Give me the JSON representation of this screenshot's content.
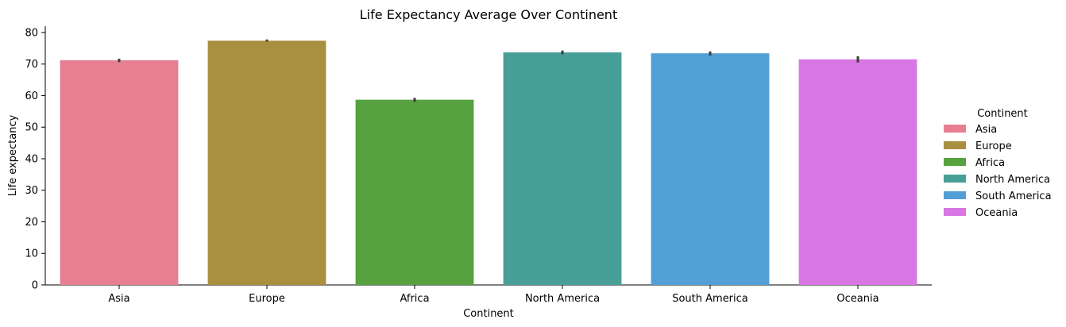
{
  "chart_data": {
    "type": "bar",
    "title": "Life Expectancy Average Over Continent",
    "xlabel": "Continent",
    "ylabel": "Life expectancy",
    "categories": [
      "Asia",
      "Europe",
      "Africa",
      "North America",
      "South America",
      "Oceania"
    ],
    "values": [
      71.2,
      77.4,
      58.7,
      73.7,
      73.4,
      71.5
    ],
    "error_low": [
      70.6,
      77.1,
      58.0,
      73.1,
      72.7,
      70.5
    ],
    "error_high": [
      71.7,
      77.8,
      59.3,
      74.3,
      74.0,
      72.5
    ],
    "colors": [
      "#e77f93",
      "#a98f40",
      "#57a140",
      "#479f98",
      "#529fd6",
      "#d876e3"
    ],
    "ylim": [
      0,
      82
    ],
    "yticks": [
      0,
      10,
      20,
      30,
      40,
      50,
      60,
      70,
      80
    ],
    "legend": {
      "title": "Continent",
      "position": "right",
      "entries": [
        "Asia",
        "Europe",
        "Africa",
        "North America",
        "South America",
        "Oceania"
      ]
    },
    "grid": false
  }
}
